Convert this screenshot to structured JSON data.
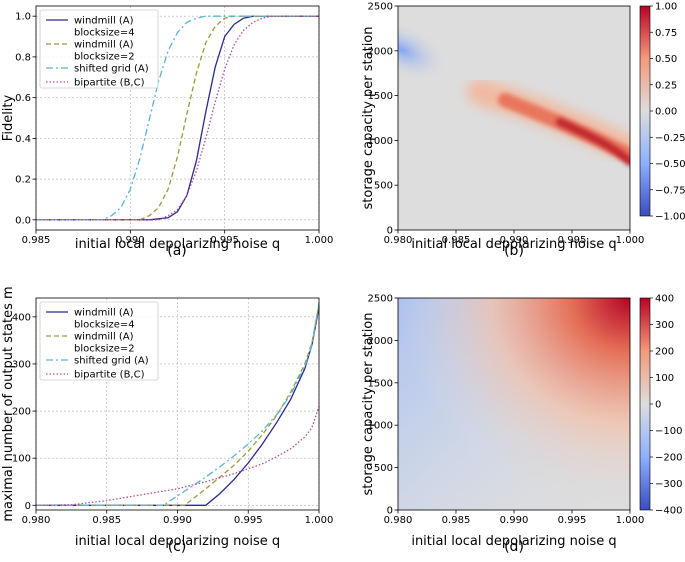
{
  "chart_data": [
    {
      "type": "line",
      "caption": "(a)",
      "xlabel": "initial local depolarizing noise q",
      "ylabel": "Fidelity",
      "xlim": [
        0.985,
        1.0
      ],
      "ylim": [
        -0.05,
        1.05
      ],
      "xticks": [
        0.985,
        0.99,
        0.995,
        1.0
      ],
      "xtick_labels": [
        "0.985",
        "0.990",
        "0.995",
        "1.000"
      ],
      "yticks": [
        0.0,
        0.2,
        0.4,
        0.6,
        0.8,
        1.0
      ],
      "ytick_labels": [
        "0.0",
        "0.2",
        "0.4",
        "0.6",
        "0.8",
        "1.0"
      ],
      "grid": true,
      "legend_position": "upper-left",
      "series": [
        {
          "name": "windmill (A)\nblocksize=4",
          "color": "#2b2a8c",
          "dash": "solid",
          "x": [
            0.985,
            0.991,
            0.992,
            0.9925,
            0.993,
            0.9935,
            0.994,
            0.9945,
            0.995,
            0.9955,
            0.996,
            0.9965,
            0.997,
            1.0
          ],
          "y": [
            0.0,
            0.0,
            0.01,
            0.04,
            0.12,
            0.29,
            0.53,
            0.75,
            0.9,
            0.96,
            0.99,
            1.0,
            1.0,
            1.0
          ]
        },
        {
          "name": "windmill (A)\nblocksize=2",
          "color": "#9a9a3a",
          "dash": "5,3",
          "x": [
            0.985,
            0.9905,
            0.991,
            0.9915,
            0.992,
            0.9925,
            0.993,
            0.9935,
            0.994,
            0.9945,
            0.995,
            0.9955,
            0.996,
            1.0
          ],
          "y": [
            0.0,
            0.0,
            0.02,
            0.06,
            0.15,
            0.31,
            0.52,
            0.72,
            0.87,
            0.95,
            0.99,
            1.0,
            1.0,
            1.0
          ]
        },
        {
          "name": "shifted grid (A)",
          "color": "#5ab4d6",
          "dash": "7,3,2,3",
          "x": [
            0.985,
            0.9885,
            0.989,
            0.9895,
            0.99,
            0.9905,
            0.991,
            0.9915,
            0.992,
            0.9925,
            0.993,
            0.9935,
            0.994,
            0.9945,
            0.995,
            1.0
          ],
          "y": [
            0.0,
            0.0,
            0.02,
            0.06,
            0.15,
            0.3,
            0.49,
            0.68,
            0.83,
            0.92,
            0.97,
            0.99,
            1.0,
            1.0,
            1.0,
            1.0
          ]
        },
        {
          "name": "bipartite (B,C)",
          "color": "#b04b9a",
          "dash": "1.5,2",
          "x": [
            0.985,
            0.9915,
            0.992,
            0.9925,
            0.993,
            0.9935,
            0.994,
            0.9945,
            0.995,
            0.9955,
            0.996,
            0.9965,
            0.997,
            0.9975,
            1.0
          ],
          "y": [
            0.0,
            0.0,
            0.02,
            0.05,
            0.12,
            0.24,
            0.4,
            0.58,
            0.74,
            0.86,
            0.93,
            0.97,
            0.99,
            1.0,
            1.0
          ]
        }
      ]
    },
    {
      "type": "heatmap",
      "caption": "(b)",
      "xlabel": "initial local depolarizing noise q",
      "ylabel": "storage capacity per station",
      "xlim": [
        0.98,
        1.0
      ],
      "ylim": [
        0,
        2500
      ],
      "xticks": [
        0.98,
        0.985,
        0.99,
        0.995,
        1.0
      ],
      "xtick_labels": [
        "0.980",
        "0.985",
        "0.990",
        "0.995",
        "1.000"
      ],
      "yticks": [
        0,
        500,
        1000,
        1500,
        2000,
        2500
      ],
      "ytick_labels": [
        "0",
        "500",
        "1000",
        "1500",
        "2000",
        "2500"
      ],
      "colorbar": {
        "min": -1.0,
        "max": 1.0,
        "ticks": [
          1.0,
          0.75,
          0.5,
          0.25,
          0.0,
          -0.25,
          -0.5,
          -0.75,
          -1.0
        ],
        "tick_labels": [
          "1.00",
          "0.75",
          "0.50",
          "0.25",
          "0.00",
          "−0.25",
          "−0.50",
          "−0.75",
          "−1.00"
        ]
      },
      "colormap": "coolwarm"
    },
    {
      "type": "line",
      "caption": "(c)",
      "xlabel": "initial local depolarizing noise q",
      "ylabel": "maximal number of output states m",
      "xlim": [
        0.98,
        1.0
      ],
      "ylim": [
        -10,
        440
      ],
      "xticks": [
        0.98,
        0.985,
        0.99,
        0.995,
        1.0
      ],
      "xtick_labels": [
        "0.980",
        "0.985",
        "0.990",
        "0.995",
        "1.000"
      ],
      "yticks": [
        0,
        100,
        200,
        300,
        400
      ],
      "ytick_labels": [
        "0",
        "100",
        "200",
        "300",
        "400"
      ],
      "grid": true,
      "legend_position": "upper-left",
      "series": [
        {
          "name": "windmill (A)\nblocksize=4",
          "color": "#2b2a8c",
          "dash": "solid",
          "x": [
            0.98,
            0.992,
            0.993,
            0.994,
            0.995,
            0.996,
            0.997,
            0.998,
            0.999,
            0.9995,
            1.0
          ],
          "y": [
            0,
            0,
            25,
            55,
            90,
            130,
            175,
            225,
            290,
            340,
            420
          ]
        },
        {
          "name": "windmill (A)\nblocksize=2",
          "color": "#9a9a3a",
          "dash": "5,3",
          "x": [
            0.98,
            0.9905,
            0.992,
            0.993,
            0.994,
            0.995,
            0.996,
            0.997,
            0.998,
            0.999,
            0.9995,
            1.0
          ],
          "y": [
            0,
            0,
            35,
            60,
            85,
            115,
            150,
            190,
            240,
            300,
            345,
            425
          ]
        },
        {
          "name": "shifted grid (A)",
          "color": "#5ab4d6",
          "dash": "7,3,2,3",
          "x": [
            0.98,
            0.989,
            0.99,
            0.991,
            0.992,
            0.993,
            0.994,
            0.995,
            0.996,
            0.997,
            0.998,
            0.999,
            0.9995,
            1.0
          ],
          "y": [
            0,
            0,
            20,
            40,
            60,
            82,
            105,
            130,
            158,
            192,
            235,
            295,
            340,
            430
          ]
        },
        {
          "name": "bipartite (B,C)",
          "color": "#b04b9a",
          "dash": "1.5,2",
          "x": [
            0.98,
            0.9825,
            0.985,
            0.988,
            0.99,
            0.992,
            0.994,
            0.996,
            0.997,
            0.998,
            0.999,
            0.9995,
            1.0
          ],
          "y": [
            0,
            1,
            10,
            25,
            35,
            50,
            67,
            88,
            103,
            120,
            145,
            165,
            210
          ]
        }
      ]
    },
    {
      "type": "heatmap",
      "caption": "(d)",
      "xlabel": "initial local depolarizing noise q",
      "ylabel": "storage capacity per station",
      "xlim": [
        0.98,
        1.0
      ],
      "ylim": [
        0,
        2500
      ],
      "xticks": [
        0.98,
        0.985,
        0.99,
        0.995,
        1.0
      ],
      "xtick_labels": [
        "0.980",
        "0.985",
        "0.990",
        "0.995",
        "1.000"
      ],
      "yticks": [
        0,
        500,
        1000,
        1500,
        2000,
        2500
      ],
      "ytick_labels": [
        "0",
        "500",
        "1000",
        "1500",
        "2000",
        "2500"
      ],
      "colorbar": {
        "min": -400,
        "max": 400,
        "ticks": [
          400,
          300,
          200,
          100,
          0,
          -100,
          -200,
          -300,
          -400
        ],
        "tick_labels": [
          "400",
          "300",
          "200",
          "100",
          "0",
          "−100",
          "−200",
          "−300",
          "−400"
        ]
      },
      "colormap": "coolwarm"
    }
  ]
}
